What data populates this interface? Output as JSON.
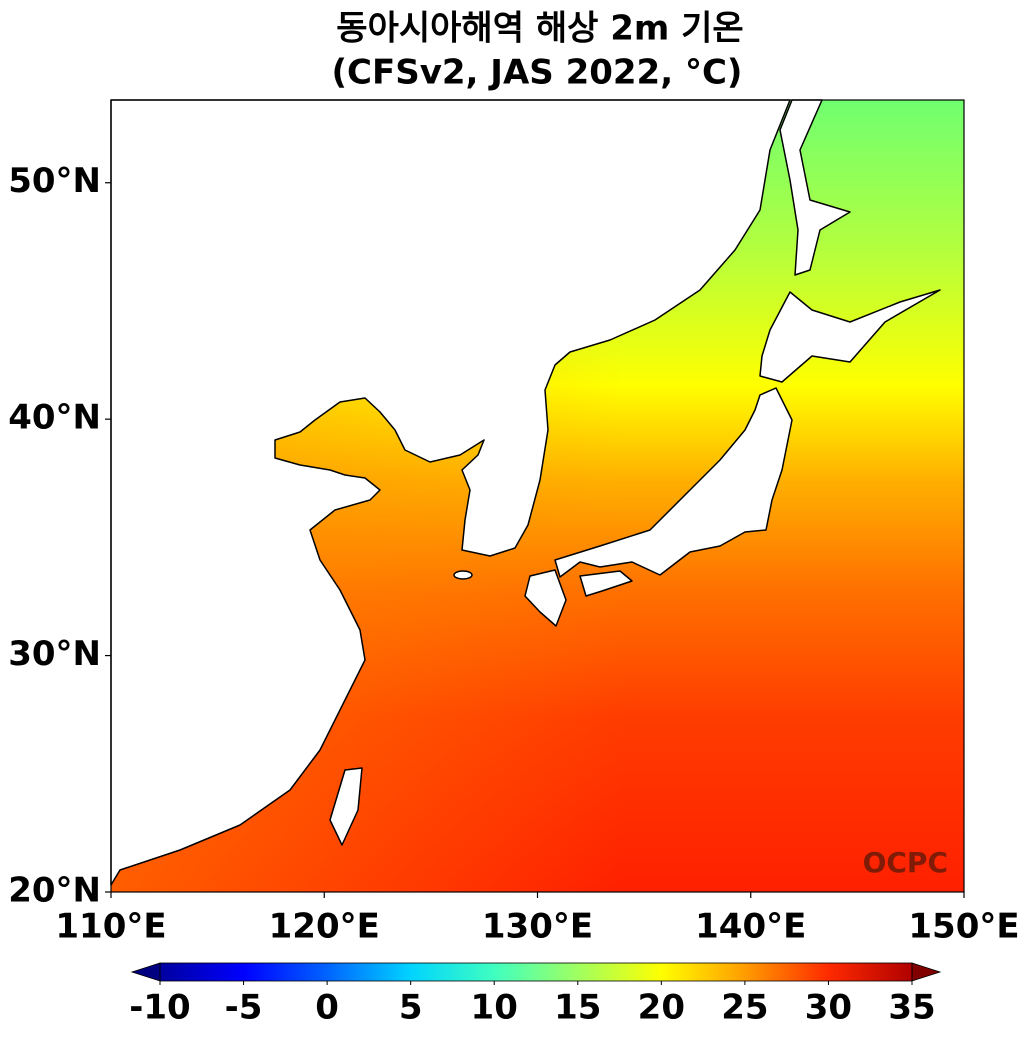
{
  "chart_data": {
    "type": "map",
    "title": "동아시아해역 해상 2m 기온",
    "subtitle": "(CFSv2, JAS 2022, °C)",
    "xlim": [
      110,
      150
    ],
    "ylim": [
      20,
      53.5
    ],
    "xticks": [
      {
        "value": 110,
        "label": "110°E"
      },
      {
        "value": 120,
        "label": "120°E"
      },
      {
        "value": 130,
        "label": "130°E"
      },
      {
        "value": 140,
        "label": "140°E"
      },
      {
        "value": 150,
        "label": "150°E"
      }
    ],
    "yticks": [
      {
        "value": 20,
        "label": "20°N"
      },
      {
        "value": 30,
        "label": "30°N"
      },
      {
        "value": 40,
        "label": "40°N"
      },
      {
        "value": 50,
        "label": "50°N"
      }
    ],
    "watermark": "OCPC",
    "colorbar": {
      "range": [
        -10,
        35
      ],
      "ticks": [
        -10,
        -5,
        0,
        5,
        10,
        15,
        20,
        25,
        30,
        35
      ],
      "colors": [
        "#0000a0",
        "#0000ff",
        "#0064ff",
        "#00d4ff",
        "#40ffc0",
        "#a0ff60",
        "#ffff00",
        "#ff9c00",
        "#ff2a00",
        "#b00000"
      ],
      "under_color": "#000080",
      "over_color": "#800000"
    }
  }
}
